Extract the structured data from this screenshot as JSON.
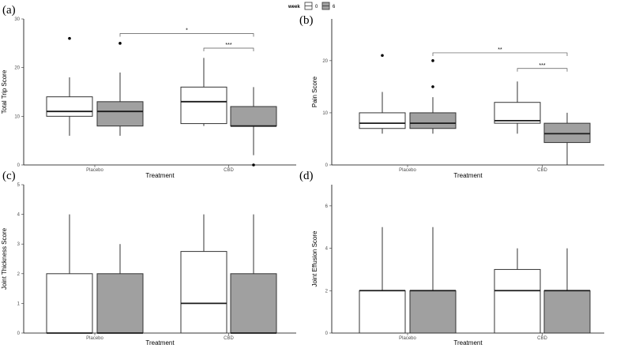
{
  "legend": {
    "title": "week",
    "entries": [
      {
        "label": "0",
        "fill": "#ffffff"
      },
      {
        "label": "6",
        "fill": "#a0a0a0"
      }
    ]
  },
  "colors": {
    "week0_fill": "#ffffff",
    "week6_fill": "#a0a0a0",
    "stroke": "#333333"
  },
  "chart_data": [
    {
      "type": "box",
      "panel_label": "(a)",
      "xlabel": "Treatment",
      "ylabel": "Total Trip Score",
      "categories": [
        "Placebo",
        "CBD"
      ],
      "ylim": [
        0,
        30
      ],
      "yticks": [
        0,
        10,
        20,
        30
      ],
      "series": [
        {
          "name": "0",
          "boxes": [
            {
              "min": 6,
              "q1": 10,
              "median": 11,
              "q3": 14,
              "max": 18,
              "outliers": [
                26
              ]
            },
            {
              "min": 8,
              "q1": 8.5,
              "median": 13,
              "q3": 16,
              "max": 22,
              "outliers": []
            }
          ]
        },
        {
          "name": "6",
          "boxes": [
            {
              "min": 6,
              "q1": 8,
              "median": 11,
              "q3": 13,
              "max": 19,
              "outliers": [
                25
              ]
            },
            {
              "min": 2,
              "q1": 8,
              "median": 8,
              "q3": 12,
              "max": 16,
              "outliers": [
                0
              ]
            }
          ]
        }
      ],
      "significance": [
        {
          "label": "*",
          "from": {
            "category": "Placebo",
            "series": "6"
          },
          "to": {
            "category": "CBD",
            "series": "6"
          },
          "y": 27
        },
        {
          "label": "***",
          "from": {
            "category": "CBD",
            "series": "0"
          },
          "to": {
            "category": "CBD",
            "series": "6"
          },
          "y": 24
        }
      ]
    },
    {
      "type": "box",
      "panel_label": "(b)",
      "xlabel": "Treatment",
      "ylabel": "Pain Score",
      "categories": [
        "Placebo",
        "CBD"
      ],
      "ylim": [
        0,
        28
      ],
      "yticks": [
        0,
        10,
        20
      ],
      "series": [
        {
          "name": "0",
          "boxes": [
            {
              "min": 6,
              "q1": 7,
              "median": 8,
              "q3": 10,
              "max": 14,
              "outliers": [
                21
              ]
            },
            {
              "min": 6,
              "q1": 8,
              "median": 8.5,
              "q3": 12,
              "max": 16,
              "outliers": []
            }
          ]
        },
        {
          "name": "6",
          "boxes": [
            {
              "min": 6,
              "q1": 7,
              "median": 8,
              "q3": 10,
              "max": 13,
              "outliers": [
                20,
                15
              ]
            },
            {
              "min": 0,
              "q1": 4.3,
              "median": 6,
              "q3": 8,
              "max": 10,
              "outliers": []
            }
          ]
        }
      ],
      "significance": [
        {
          "label": "**",
          "from": {
            "category": "Placebo",
            "series": "6"
          },
          "to": {
            "category": "CBD",
            "series": "6"
          },
          "y": 21.5
        },
        {
          "label": "***",
          "from": {
            "category": "CBD",
            "series": "0"
          },
          "to": {
            "category": "CBD",
            "series": "6"
          },
          "y": 18.5
        }
      ]
    },
    {
      "type": "box",
      "panel_label": "(c)",
      "xlabel": "Treatment",
      "ylabel": "Joint Thickness Score",
      "categories": [
        "Placebo",
        "CBD"
      ],
      "ylim": [
        0,
        5
      ],
      "yticks": [
        0,
        1,
        2,
        3,
        4,
        5
      ],
      "series": [
        {
          "name": "0",
          "boxes": [
            {
              "min": 0,
              "q1": 0,
              "median": 0,
              "q3": 2,
              "max": 4,
              "outliers": []
            },
            {
              "min": 0,
              "q1": 0,
              "median": 1,
              "q3": 2.75,
              "max": 4,
              "outliers": []
            }
          ]
        },
        {
          "name": "6",
          "boxes": [
            {
              "min": 0,
              "q1": 0,
              "median": 0,
              "q3": 2,
              "max": 3,
              "outliers": []
            },
            {
              "min": 0,
              "q1": 0,
              "median": 0,
              "q3": 2,
              "max": 4,
              "outliers": []
            }
          ]
        }
      ],
      "significance": []
    },
    {
      "type": "box",
      "panel_label": "(d)",
      "xlabel": "Treatment",
      "ylabel": "Joint Effusion Score",
      "categories": [
        "Placebo",
        "CBD"
      ],
      "ylim": [
        0,
        7
      ],
      "yticks": [
        0,
        2,
        4,
        6
      ],
      "series": [
        {
          "name": "0",
          "boxes": [
            {
              "min": 0,
              "q1": 0,
              "median": 2,
              "q3": 2,
              "max": 5,
              "outliers": []
            },
            {
              "min": 0,
              "q1": 0,
              "median": 2,
              "q3": 3,
              "max": 4,
              "outliers": []
            }
          ]
        },
        {
          "name": "6",
          "boxes": [
            {
              "min": 0,
              "q1": 0,
              "median": 2,
              "q3": 2,
              "max": 5,
              "outliers": []
            },
            {
              "min": 0,
              "q1": 0,
              "median": 2,
              "q3": 2,
              "max": 4,
              "outliers": []
            }
          ]
        }
      ],
      "significance": []
    }
  ]
}
